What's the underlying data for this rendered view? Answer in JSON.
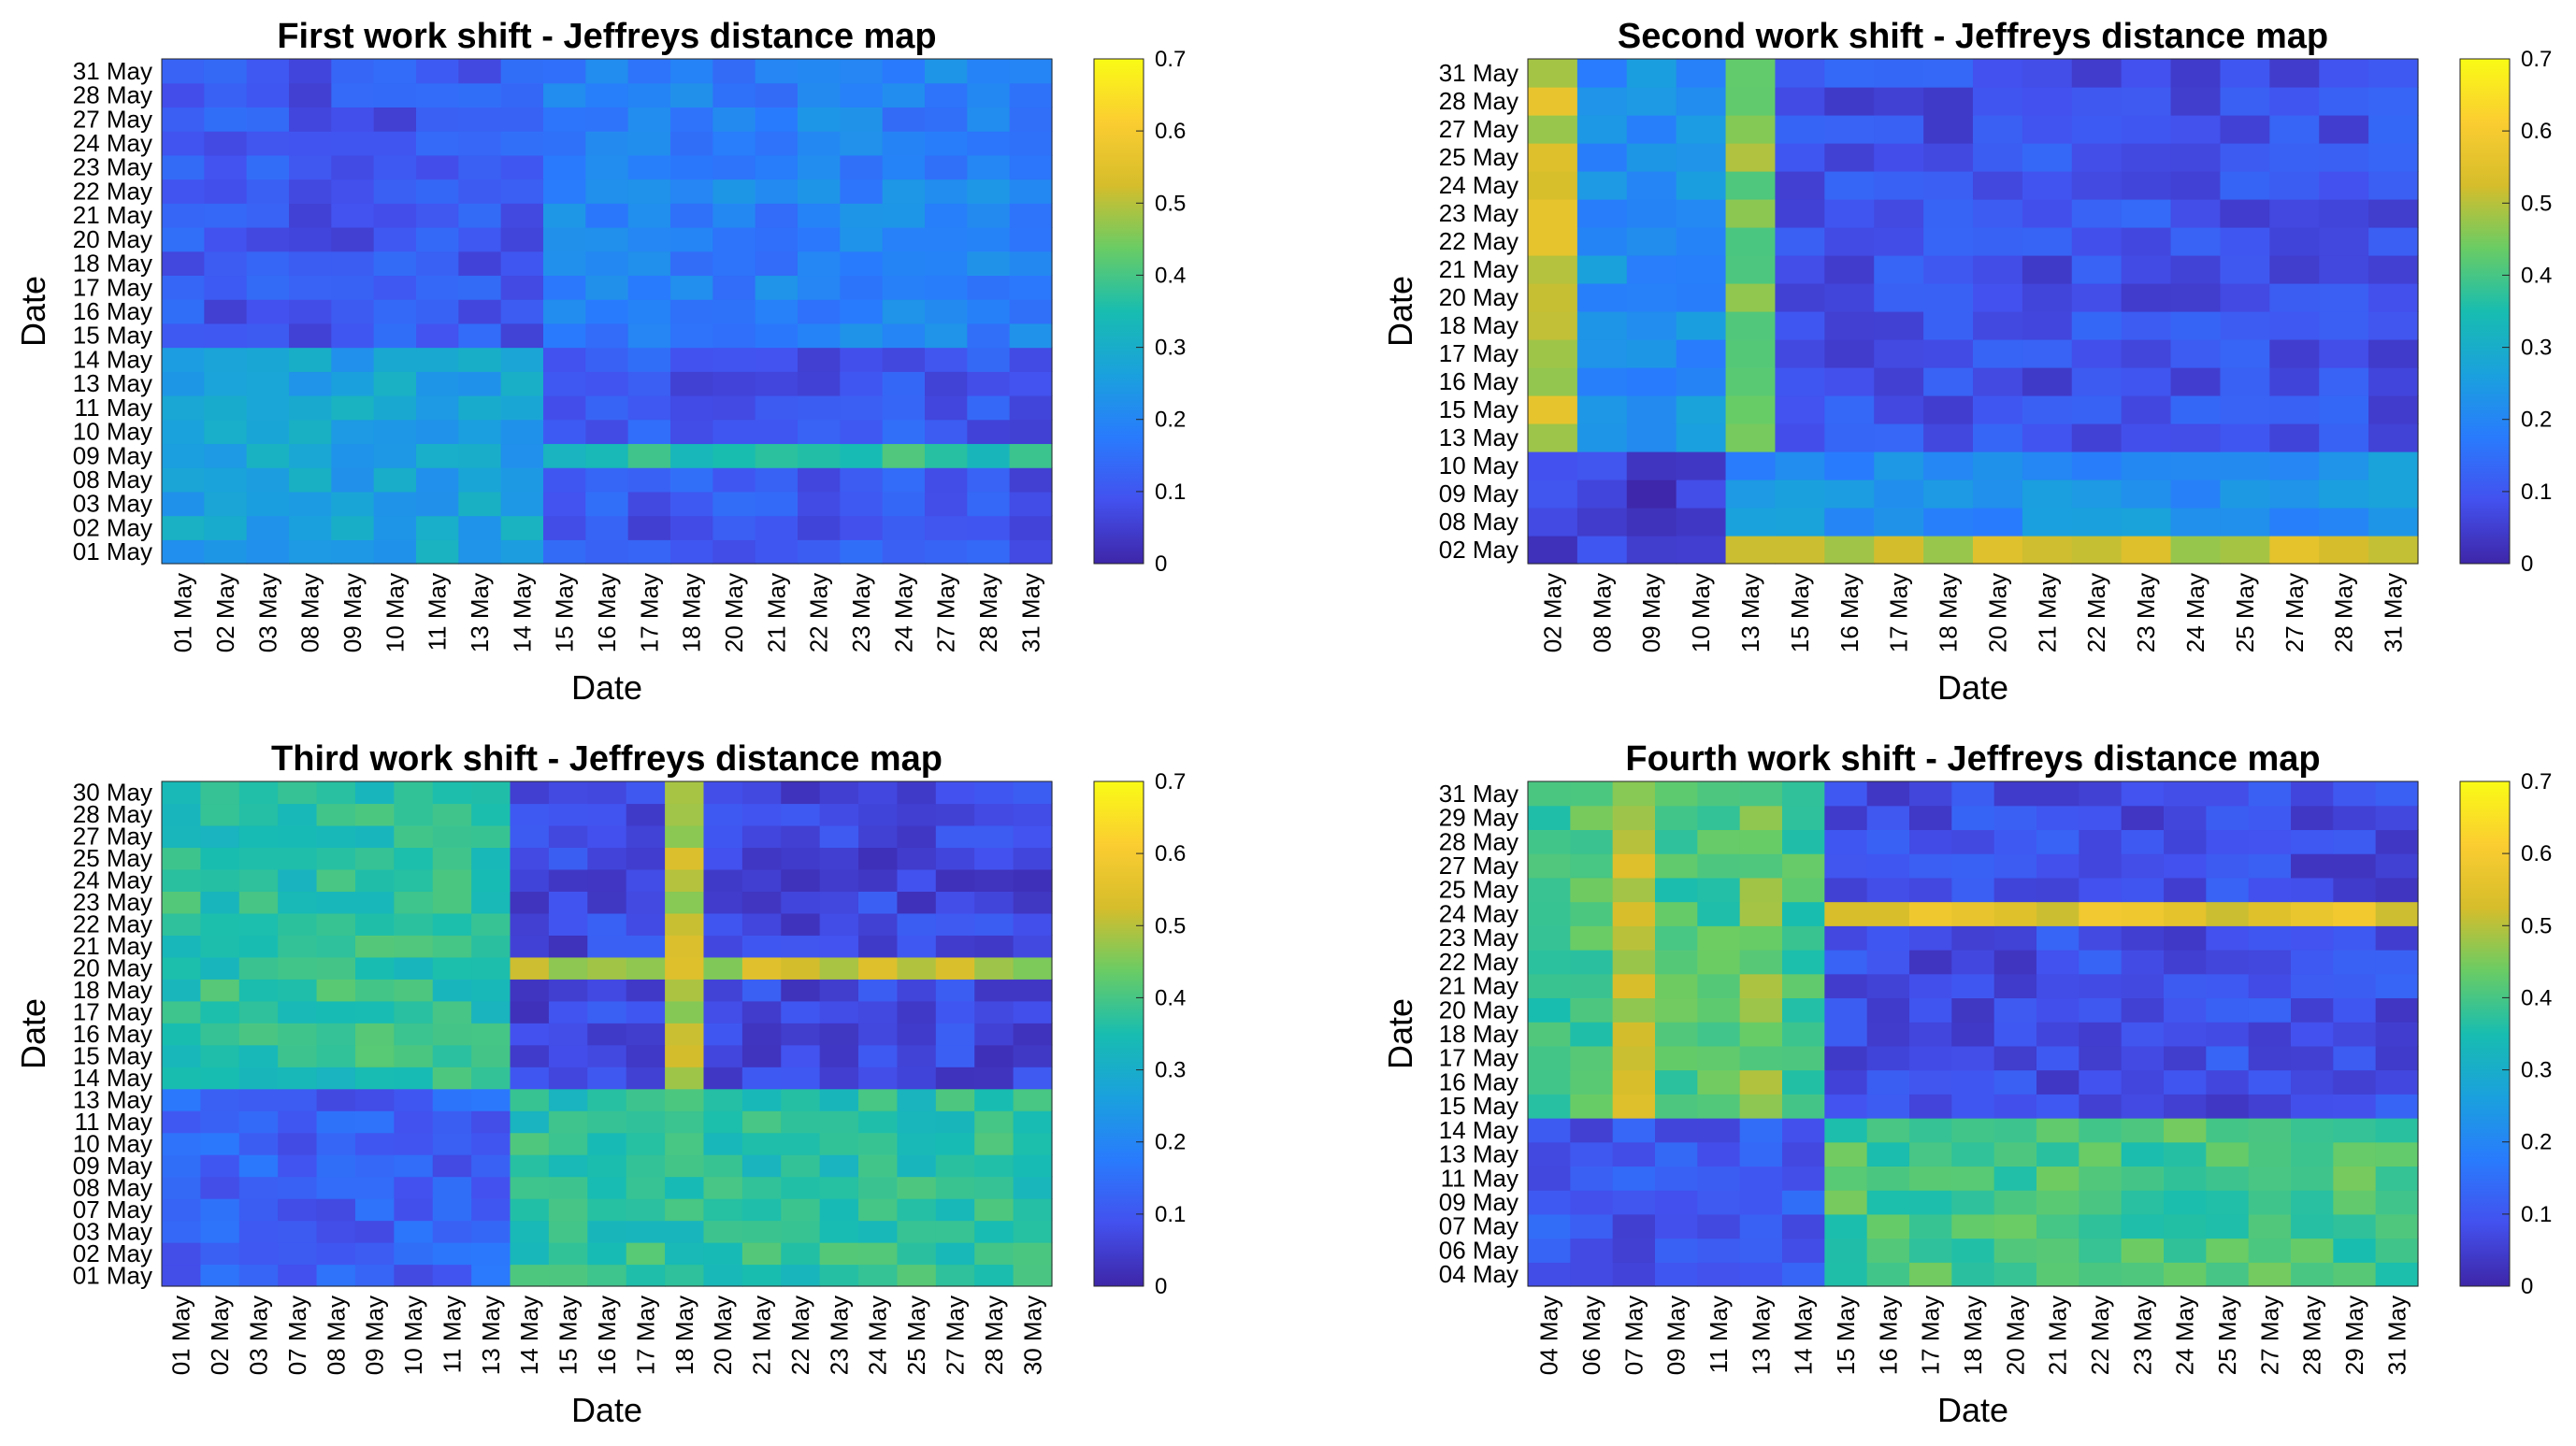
{
  "chart_data": [
    {
      "type": "heatmap",
      "title": "First work shift - Jeffreys distance map",
      "xlabel": "Date",
      "ylabel": "Date",
      "dates": [
        "01 May",
        "02 May",
        "03 May",
        "08 May",
        "09 May",
        "10 May",
        "11 May",
        "13 May",
        "14 May",
        "15 May",
        "16 May",
        "17 May",
        "18 May",
        "20 May",
        "21 May",
        "22 May",
        "23 May",
        "24 May",
        "27 May",
        "28 May",
        "31 May"
      ],
      "split": 9,
      "blocks": {
        "aa": 0.27,
        "bb": 0.19,
        "ab": 0.1
      },
      "special_rows": {
        "09 May": 0.36
      },
      "special_cols": {},
      "colorbar": {
        "min": 0,
        "max": 0.7,
        "ticks": [
          0,
          0.1,
          0.2,
          0.3,
          0.4,
          0.5,
          0.6,
          0.7
        ]
      }
    },
    {
      "type": "heatmap",
      "title": "Second work shift - Jeffreys distance map",
      "xlabel": "Date",
      "ylabel": "Date",
      "dates": [
        "02 May",
        "08 May",
        "09 May",
        "10 May",
        "13 May",
        "15 May",
        "16 May",
        "17 May",
        "18 May",
        "20 May",
        "21 May",
        "22 May",
        "23 May",
        "24 May",
        "25 May",
        "27 May",
        "28 May",
        "31 May"
      ],
      "split": 4,
      "blocks": {
        "aa": 0.05,
        "bb": 0.09,
        "ab": 0.22
      },
      "special_rows": {
        "02 May": 0.52
      },
      "special_cols": {
        "02 May": 0.52,
        "13 May": 0.45
      },
      "colorbar": {
        "min": 0,
        "max": 0.7,
        "ticks": [
          0,
          0.1,
          0.2,
          0.3,
          0.4,
          0.5,
          0.6,
          0.7
        ]
      }
    },
    {
      "type": "heatmap",
      "title": "Third work shift - Jeffreys distance map",
      "xlabel": "Date",
      "ylabel": "Date",
      "dates": [
        "01 May",
        "02 May",
        "03 May",
        "07 May",
        "08 May",
        "09 May",
        "10 May",
        "11 May",
        "13 May",
        "14 May",
        "15 May",
        "16 May",
        "17 May",
        "18 May",
        "20 May",
        "21 May",
        "22 May",
        "23 May",
        "24 May",
        "25 May",
        "27 May",
        "28 May",
        "30 May"
      ],
      "split": 9,
      "blocks": {
        "aa": 0.12,
        "bb": 0.07,
        "ab": 0.37
      },
      "special_rows": {
        "20 May": 0.5
      },
      "special_cols": {
        "18 May": 0.5
      },
      "colorbar": {
        "min": 0,
        "max": 0.7,
        "ticks": [
          0,
          0.1,
          0.2,
          0.3,
          0.4,
          0.5,
          0.6,
          0.7
        ]
      }
    },
    {
      "type": "heatmap",
      "title": "Fourth work shift - Jeffreys distance map",
      "xlabel": "Date",
      "ylabel": "Date",
      "dates": [
        "04 May",
        "06 May",
        "07 May",
        "09 May",
        "11 May",
        "13 May",
        "14 May",
        "15 May",
        "16 May",
        "17 May",
        "18 May",
        "20 May",
        "21 May",
        "22 May",
        "23 May",
        "24 May",
        "25 May",
        "27 May",
        "28 May",
        "29 May",
        "31 May"
      ],
      "split": 7,
      "blocks": {
        "aa": 0.1,
        "bb": 0.08,
        "ab": 0.4
      },
      "special_rows": {
        "24 May": 0.55
      },
      "special_cols": {
        "07 May": 0.5,
        "13 May": 0.45
      },
      "colorbar": {
        "min": 0,
        "max": 0.7,
        "ticks": [
          0,
          0.1,
          0.2,
          0.3,
          0.4,
          0.5,
          0.6,
          0.7
        ]
      }
    }
  ]
}
